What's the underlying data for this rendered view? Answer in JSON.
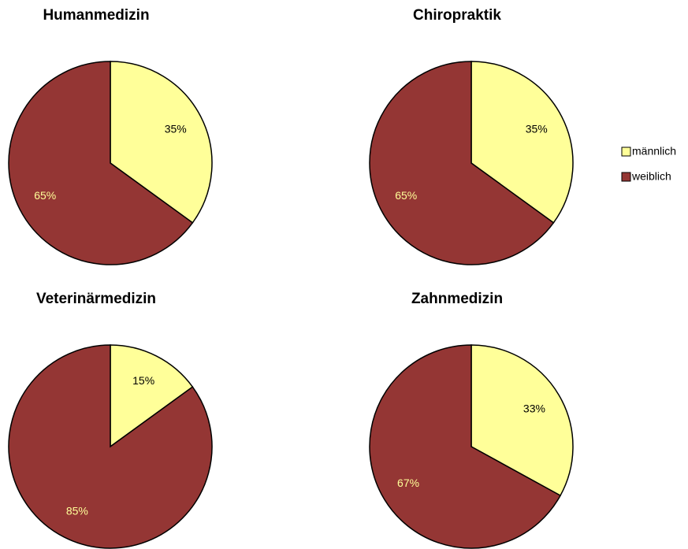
{
  "chart_data": [
    {
      "type": "pie",
      "title": "Humanmedizin",
      "categories": [
        "männlich",
        "weiblich"
      ],
      "values": [
        35,
        65
      ],
      "value_labels": [
        "35%",
        "65%"
      ]
    },
    {
      "type": "pie",
      "title": "Chiropraktik",
      "categories": [
        "männlich",
        "weiblich"
      ],
      "values": [
        35,
        65
      ],
      "value_labels": [
        "35%",
        "65%"
      ]
    },
    {
      "type": "pie",
      "title": "Veterinärmedizin",
      "categories": [
        "männlich",
        "weiblich"
      ],
      "values": [
        15,
        85
      ],
      "value_labels": [
        "15%",
        "85%"
      ]
    },
    {
      "type": "pie",
      "title": "Zahnmedizin",
      "categories": [
        "männlich",
        "weiblich"
      ],
      "values": [
        33,
        67
      ],
      "value_labels": [
        "33%",
        "67%"
      ]
    }
  ],
  "legend": {
    "entries": [
      "männlich",
      "weiblich"
    ],
    "colors": [
      "#ffff99",
      "#943634"
    ],
    "position": "right"
  }
}
